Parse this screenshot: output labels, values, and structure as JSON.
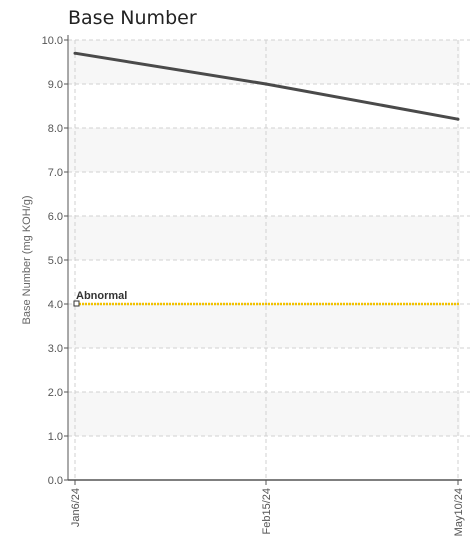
{
  "chart_data": {
    "type": "line",
    "title": "Base Number",
    "xlabel": "",
    "ylabel": "Base Number (mg KOH/g)",
    "ylim": [
      0,
      10
    ],
    "y_ticks": [
      "0.0",
      "1.0",
      "2.0",
      "3.0",
      "4.0",
      "5.0",
      "6.0",
      "7.0",
      "8.0",
      "9.0",
      "10.0"
    ],
    "categories": [
      "Jan6/24",
      "Feb15/24",
      "May10/24"
    ],
    "grid": true,
    "series": [
      {
        "values": [
          9.7,
          9.0,
          8.2
        ],
        "color": "#4a4a4a"
      }
    ],
    "threshold": {
      "label": "Abnormal",
      "value": 4.0,
      "color": "#f2c200"
    },
    "band_colors": [
      "#ffffff",
      "#f7f7f7"
    ]
  }
}
